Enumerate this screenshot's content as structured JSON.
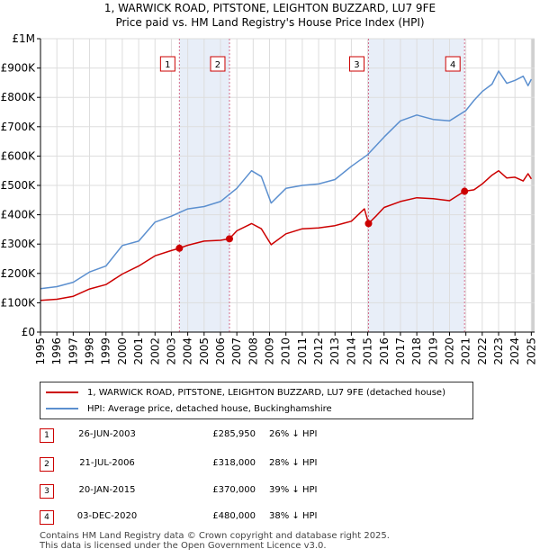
{
  "title_line1": "1, WARWICK ROAD, PITSTONE, LEIGHTON BUZZARD, LU7 9FE",
  "title_line2": "Price paid vs. HM Land Registry's House Price Index (HPI)",
  "chart_data": {
    "type": "line",
    "x_range": [
      1995,
      2025.2
    ],
    "y_range": [
      0,
      1000000
    ],
    "y_ticks": [
      0,
      100000,
      200000,
      300000,
      400000,
      500000,
      600000,
      700000,
      800000,
      900000,
      1000000
    ],
    "y_tick_labels": [
      "£0",
      "£100K",
      "£200K",
      "£300K",
      "£400K",
      "£500K",
      "£600K",
      "£700K",
      "£800K",
      "£900K",
      "£1M"
    ],
    "x_ticks": [
      1995,
      1996,
      1997,
      1998,
      1999,
      2000,
      2001,
      2002,
      2003,
      2004,
      2005,
      2006,
      2007,
      2008,
      2009,
      2010,
      2011,
      2012,
      2013,
      2014,
      2015,
      2016,
      2017,
      2018,
      2019,
      2020,
      2021,
      2022,
      2023,
      2024,
      2025
    ],
    "grid": true,
    "series": [
      {
        "name": "1, WARWICK ROAD, PITSTONE, LEIGHTON BUZZARD, LU7 9FE (detached house)",
        "color": "#cc0000",
        "x": [
          1995,
          1996,
          1997,
          1998,
          1999,
          2000,
          2001,
          2002,
          2003,
          2003.49,
          2004,
          2005,
          2006,
          2006.55,
          2007,
          2007.9,
          2008.5,
          2009.1,
          2010,
          2011,
          2012,
          2013,
          2014,
          2014.8,
          2015.05,
          2015.5,
          2016,
          2017,
          2018,
          2019,
          2020,
          2020.92,
          2021.5,
          2022,
          2022.6,
          2023,
          2023.5,
          2024,
          2024.5,
          2024.8,
          2025
        ],
        "values": [
          108000,
          112000,
          122000,
          147000,
          162000,
          198000,
          225000,
          260000,
          278000,
          285950,
          296000,
          310000,
          313000,
          318000,
          345000,
          370000,
          352000,
          298000,
          335000,
          352000,
          355000,
          363000,
          378000,
          420000,
          370000,
          395000,
          425000,
          445000,
          458000,
          455000,
          448000,
          480000,
          485000,
          505000,
          535000,
          550000,
          525000,
          528000,
          515000,
          540000,
          522000
        ]
      },
      {
        "name": "HPI: Average price, detached house, Buckinghamshire",
        "color": "#5b8fcf",
        "x": [
          1995,
          1996,
          1997,
          1998,
          1999,
          2000,
          2001,
          2002,
          2003,
          2004,
          2005,
          2006,
          2007,
          2007.9,
          2008.5,
          2009.1,
          2010,
          2011,
          2012,
          2013,
          2014,
          2015,
          2016,
          2017,
          2018,
          2019,
          2020,
          2021,
          2021.5,
          2022,
          2022.6,
          2023,
          2023.5,
          2024,
          2024.5,
          2024.8,
          2025
        ],
        "values": [
          148000,
          155000,
          170000,
          205000,
          225000,
          295000,
          310000,
          375000,
          395000,
          420000,
          428000,
          445000,
          490000,
          550000,
          530000,
          440000,
          490000,
          500000,
          505000,
          520000,
          565000,
          605000,
          665000,
          720000,
          740000,
          725000,
          720000,
          755000,
          790000,
          820000,
          845000,
          890000,
          848000,
          858000,
          872000,
          840000,
          862000
        ]
      }
    ],
    "markers": [
      {
        "label": "1",
        "x": 2003.49,
        "value": 285950
      },
      {
        "label": "2",
        "x": 2006.55,
        "value": 318000
      },
      {
        "label": "3",
        "x": 2015.05,
        "value": 370000
      },
      {
        "label": "4",
        "x": 2020.92,
        "value": 480000
      }
    ]
  },
  "legend": {
    "entries": [
      {
        "label": "1, WARWICK ROAD, PITSTONE, LEIGHTON BUZZARD, LU7 9FE (detached house)",
        "color": "#cc0000"
      },
      {
        "label": "HPI: Average price, detached house, Buckinghamshire",
        "color": "#5b8fcf"
      }
    ]
  },
  "transactions": [
    {
      "num": "1",
      "date": "26-JUN-2003",
      "price": "£285,950",
      "hpi": "26% ↓ HPI"
    },
    {
      "num": "2",
      "date": "21-JUL-2006",
      "price": "£318,000",
      "hpi": "28% ↓ HPI"
    },
    {
      "num": "3",
      "date": "20-JAN-2015",
      "price": "£370,000",
      "hpi": "39% ↓ HPI"
    },
    {
      "num": "4",
      "date": "03-DEC-2020",
      "price": "£480,000",
      "hpi": "38% ↓ HPI"
    }
  ],
  "footer_line1": "Contains HM Land Registry data © Crown copyright and database right 2025.",
  "footer_line2": "This data is licensed under the Open Government Licence v3.0."
}
